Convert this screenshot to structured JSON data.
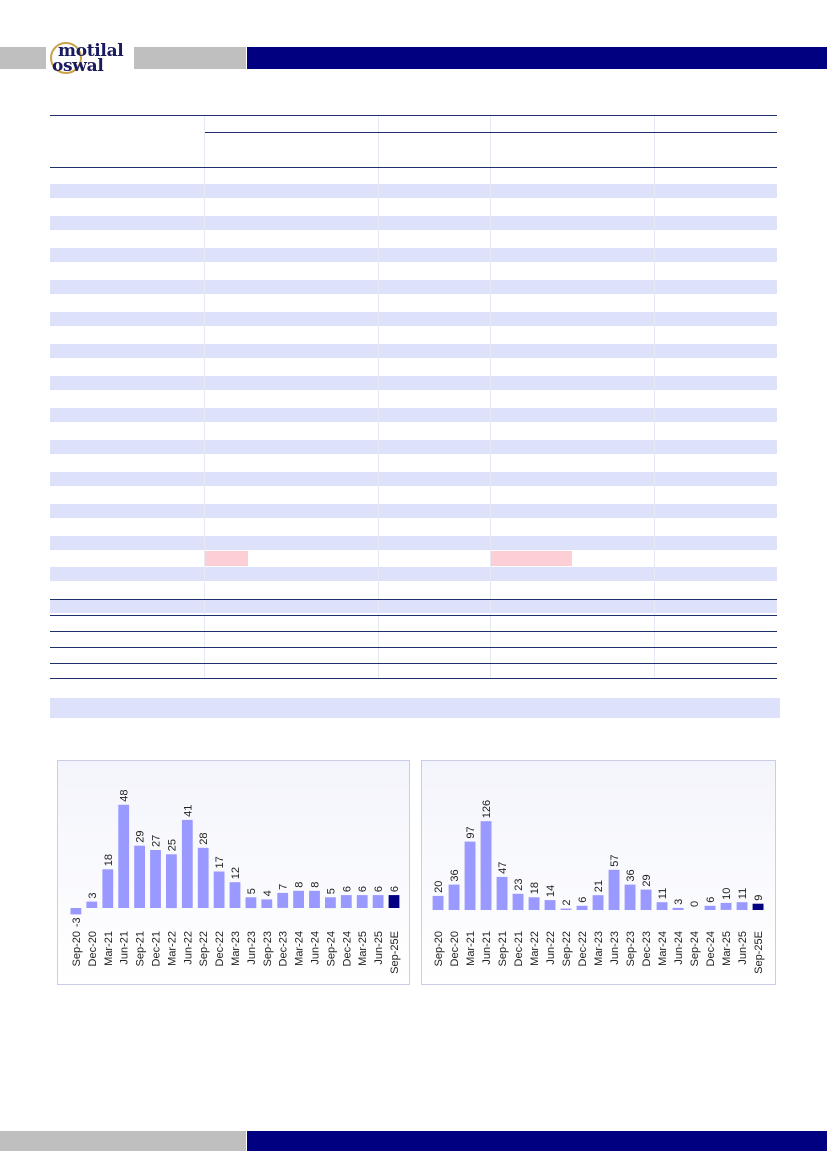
{
  "brand": {
    "logo_line1": "motilal",
    "logo_line2": "oswal"
  },
  "colors": {
    "navy": "#000080",
    "grey_band": "#bfbfbf",
    "table_band": "#dde2fa",
    "highlight_pink": "#fccfd6",
    "bar_fill": "#9999ff",
    "bar_highlight": "#000080"
  },
  "chart_data": [
    {
      "type": "bar",
      "categories": [
        "Sep-20",
        "Dec-20",
        "Mar-21",
        "Jun-21",
        "Sep-21",
        "Dec-21",
        "Mar-22",
        "Jun-22",
        "Sep-22",
        "Dec-22",
        "Mar-23",
        "Jun-23",
        "Sep-23",
        "Dec-23",
        "Mar-24",
        "Jun-24",
        "Sep-24",
        "Dec-24",
        "Mar-25",
        "Jun-25",
        "Sep-25E"
      ],
      "values": [
        -3,
        3,
        18,
        48,
        29,
        27,
        25,
        41,
        28,
        17,
        12,
        5,
        4,
        7,
        8,
        8,
        5,
        6,
        6,
        6,
        6
      ],
      "value_labels": [
        "-3",
        "3",
        "18",
        "48",
        "29",
        "27",
        "25",
        "41",
        "28",
        "17",
        "12",
        "5",
        "4",
        "7",
        "8",
        "8",
        "5",
        "6",
        "6",
        "6",
        "6"
      ],
      "highlight_index": 20,
      "title": "",
      "xlabel": "",
      "ylabel": "",
      "ylim": [
        -5,
        55
      ],
      "grid": false,
      "data_labels": true
    },
    {
      "type": "bar",
      "categories": [
        "Sep-20",
        "Dec-20",
        "Mar-21",
        "Jun-21",
        "Sep-21",
        "Dec-21",
        "Mar-22",
        "Jun-22",
        "Sep-22",
        "Dec-22",
        "Mar-23",
        "Jun-23",
        "Sep-23",
        "Dec-23",
        "Mar-24",
        "Jun-24",
        "Sep-24",
        "Dec-24",
        "Mar-25",
        "Jun-25",
        "Sep-25E"
      ],
      "values": [
        20,
        36,
        97,
        126,
        47,
        23,
        18,
        14,
        2,
        6,
        21,
        57,
        36,
        29,
        11,
        3,
        0,
        6,
        10,
        11,
        9
      ],
      "value_labels": [
        "20",
        "36",
        "97",
        "126",
        "47",
        "23",
        "18",
        "14",
        "2",
        "6",
        "21",
        "57",
        "36",
        "29",
        "11",
        "3",
        "0",
        "6",
        "10",
        "11",
        "9"
      ],
      "highlight_index": 20,
      "title": "",
      "xlabel": "",
      "ylabel": "",
      "ylim": [
        0,
        140
      ],
      "grid": false,
      "data_labels": true
    }
  ]
}
